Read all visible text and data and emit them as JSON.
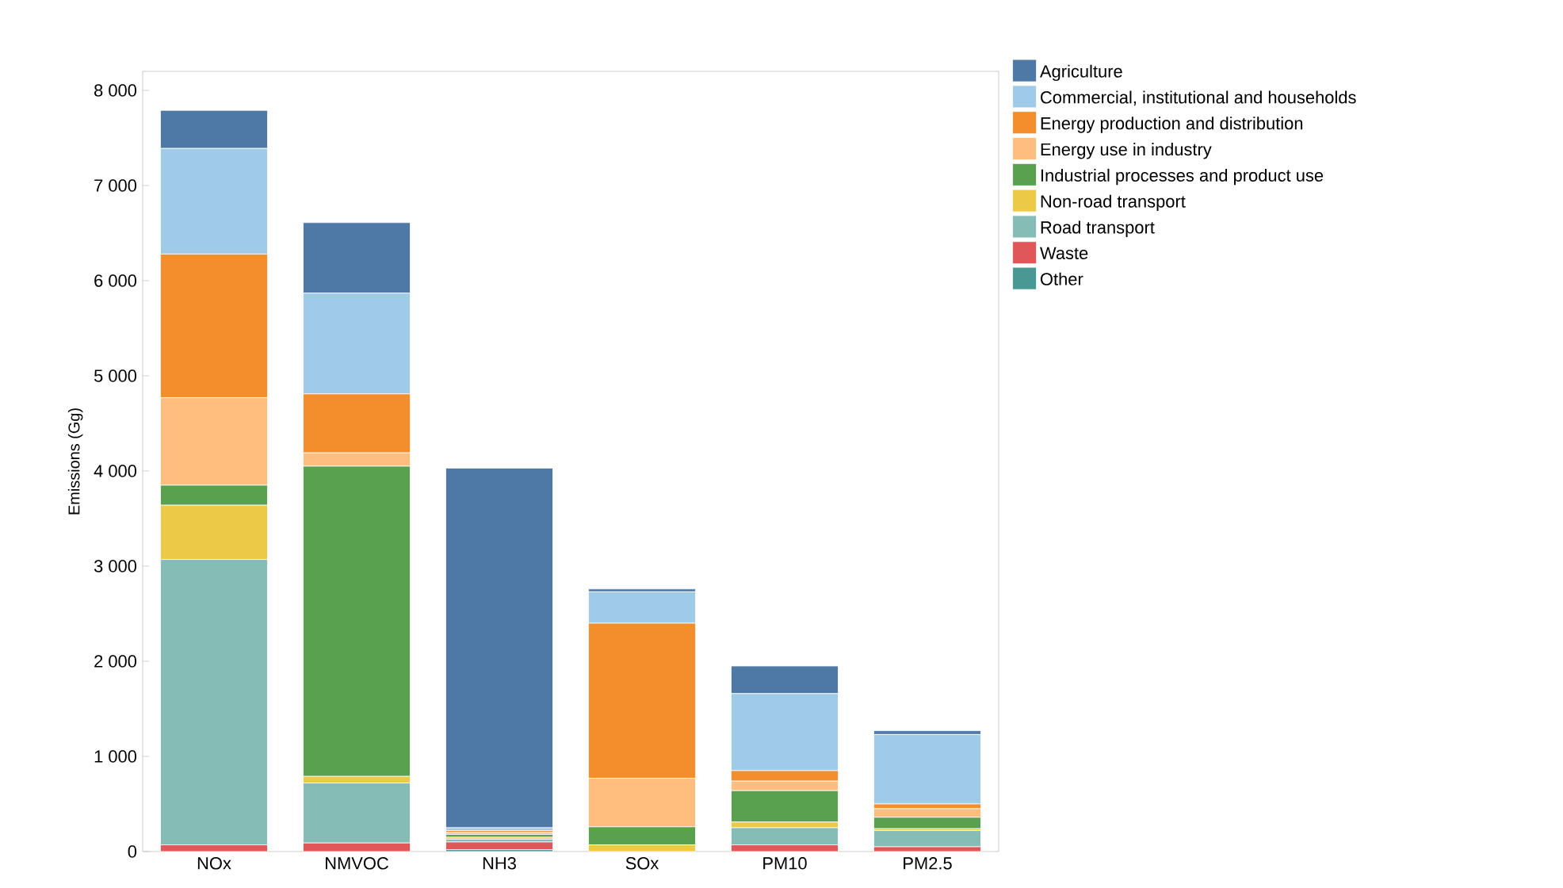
{
  "chart_data": {
    "type": "bar",
    "stacked": true,
    "ylabel": "Emissions (Gg)",
    "categories": [
      "NOx",
      "NMVOC",
      "NH3",
      "SOx",
      "PM10",
      "PM2.5"
    ],
    "series": [
      {
        "name": "Other",
        "color": "#499894",
        "values": [
          0,
          0,
          20,
          0,
          0,
          0
        ]
      },
      {
        "name": "Waste",
        "color": "#e15759",
        "values": [
          70,
          90,
          80,
          null,
          70,
          50
        ]
      },
      {
        "name": "Road transport",
        "color": "#86bcb6",
        "values": [
          3000,
          630,
          30,
          null,
          180,
          170
        ]
      },
      {
        "name": "Non-road transport",
        "color": "#edc948",
        "values": [
          570,
          70,
          20,
          70,
          60,
          20
        ]
      },
      {
        "name": "Industrial processes and product use",
        "color": "#59a14f",
        "values": [
          210,
          3260,
          30,
          190,
          330,
          120
        ]
      },
      {
        "name": "Energy use in industry",
        "color": "#ffbe7d",
        "values": [
          920,
          140,
          20,
          510,
          100,
          90
        ]
      },
      {
        "name": "Energy production and distribution",
        "color": "#f28e2b",
        "values": [
          1510,
          620,
          20,
          1630,
          110,
          50
        ]
      },
      {
        "name": "Commercial, institutional and households",
        "color": "#a0cbe8",
        "values": [
          1110,
          1060,
          30,
          330,
          810,
          730
        ]
      },
      {
        "name": "Agriculture",
        "color": "#4e79a7",
        "values": [
          400,
          740,
          3780,
          30,
          290,
          40
        ]
      }
    ],
    "ylim": [
      0,
      8200
    ],
    "yticks": [
      {
        "value": 0,
        "label": "0"
      },
      {
        "value": 1000,
        "label": "1 000"
      },
      {
        "value": 2000,
        "label": "2 000"
      },
      {
        "value": 3000,
        "label": "3 000"
      },
      {
        "value": 4000,
        "label": "4 000"
      },
      {
        "value": 5000,
        "label": "5 000"
      },
      {
        "value": 6000,
        "label": "6 000"
      },
      {
        "value": 7000,
        "label": "7 000"
      },
      {
        "value": 8000,
        "label": "8 000"
      }
    ],
    "legend": "top right"
  }
}
